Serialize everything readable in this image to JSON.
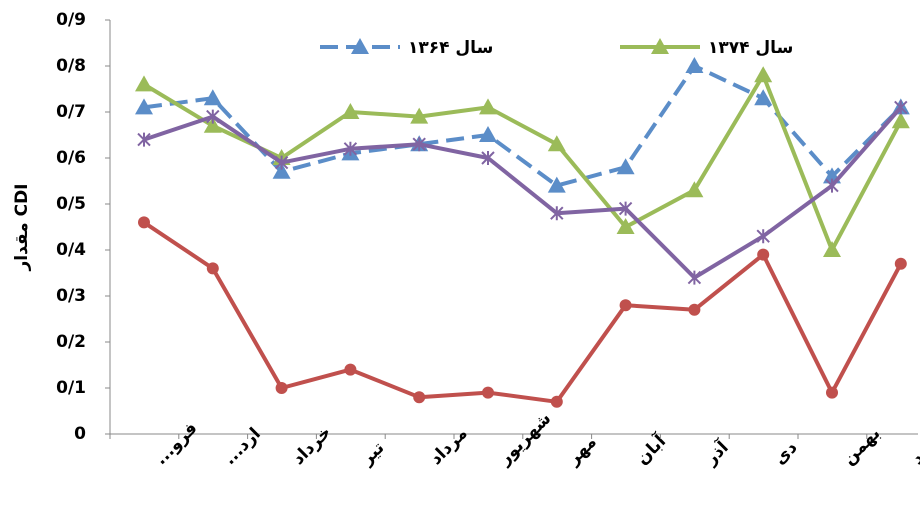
{
  "chart_data": {
    "type": "line",
    "y_label": "مقدار CDI",
    "categories": [
      "فرو...",
      "ارد...",
      "خرداد",
      "تیر",
      "مرداد",
      "شهریور",
      "مهر",
      "آبان",
      "آذر",
      "دی",
      "بهمن",
      "اسفند"
    ],
    "series": [
      {
        "name": "سال ۱۳۶۴",
        "color": "#5b8dc8",
        "dashed": true,
        "marker": "triangle",
        "values": [
          0.71,
          0.73,
          0.57,
          0.61,
          0.63,
          0.65,
          0.54,
          0.58,
          0.8,
          0.73,
          0.56,
          0.71
        ]
      },
      {
        "name": "سال ۱۳۷۴",
        "color": "#9bbb59",
        "dashed": false,
        "marker": "triangle",
        "values": [
          0.76,
          0.67,
          0.6,
          0.7,
          0.69,
          0.71,
          0.63,
          0.45,
          0.53,
          0.78,
          0.4,
          0.68
        ]
      },
      {
        "color": "#8064a2",
        "dashed": false,
        "marker": "x",
        "values": [
          0.64,
          0.69,
          0.59,
          0.62,
          0.63,
          0.6,
          0.48,
          0.49,
          0.34,
          0.43,
          0.54,
          0.71
        ]
      },
      {
        "color": "#c0504d",
        "dashed": false,
        "marker": "circle",
        "values": [
          0.46,
          0.36,
          0.1,
          0.14,
          0.08,
          0.09,
          0.07,
          0.28,
          0.27,
          0.39,
          0.09,
          0.37
        ]
      }
    ],
    "ylim": [
      0,
      0.9
    ],
    "yticks": [
      0,
      {
        "value": 0.1,
        "label": "0/1"
      },
      {
        "value": 0.2,
        "label": "0/2"
      },
      {
        "value": 0.3,
        "label": "0/3"
      },
      {
        "value": 0.4,
        "label": "0/4"
      },
      {
        "value": 0.5,
        "label": "0/5"
      },
      {
        "value": 0.6,
        "label": "0/6"
      },
      {
        "value": 0.7,
        "label": "0/7"
      },
      {
        "value": 0.8,
        "label": "0/8"
      },
      {
        "value": 0.9,
        "label": "0/9"
      }
    ],
    "grid": false
  }
}
